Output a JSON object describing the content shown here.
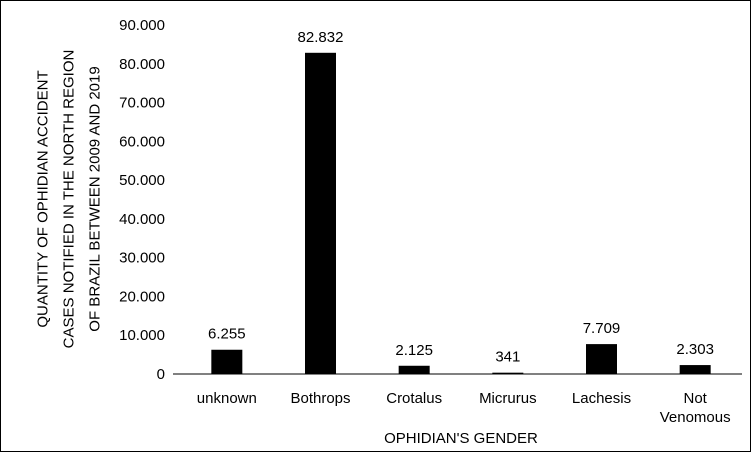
{
  "chart_data": {
    "type": "bar",
    "title": "",
    "xlabel": "OPHIDIAN'S GENDER",
    "ylabel_lines": [
      "QUANTITY OF OPHIDIAN ACCIDENT",
      "CASES NOTIFIED IN THE NORTH REGION",
      "OF BRAZIL BETWEEN 2009 AND 2019"
    ],
    "categories": [
      [
        "unknown"
      ],
      [
        "Bothrops"
      ],
      [
        "Crotalus"
      ],
      [
        "Micrurus"
      ],
      [
        "Lachesis"
      ],
      [
        "Not",
        "Venomous"
      ]
    ],
    "values": [
      6255,
      82832,
      2125,
      341,
      7709,
      2303
    ],
    "data_labels": [
      "6.255",
      "82.832",
      "2.125",
      "341",
      "7.709",
      "2.303"
    ],
    "ylim": [
      0,
      90000
    ],
    "y_ticks": [
      0,
      10000,
      20000,
      30000,
      40000,
      50000,
      60000,
      70000,
      80000,
      90000
    ],
    "y_tick_labels": [
      "0",
      "10.000",
      "20.000",
      "30.000",
      "40.000",
      "50.000",
      "60.000",
      "70.000",
      "80.000",
      "90.000"
    ],
    "grid": false,
    "legend": "none",
    "bar_color": "#000000"
  }
}
